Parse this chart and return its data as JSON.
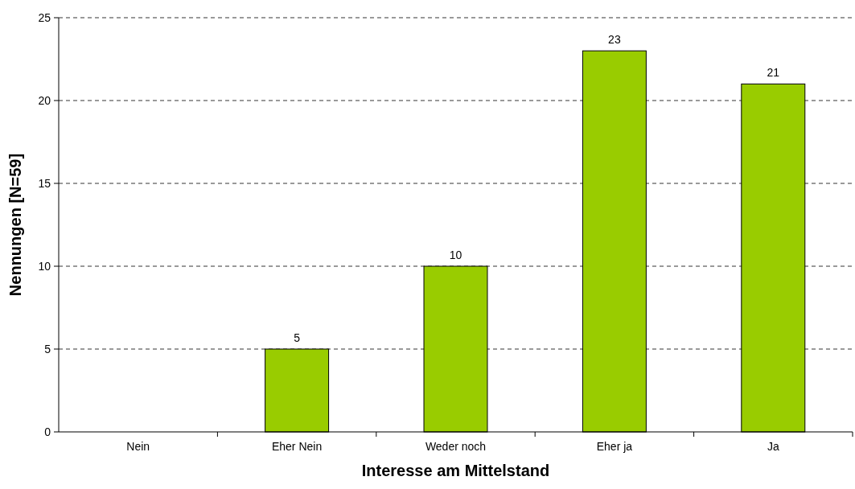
{
  "chart_data": {
    "type": "bar",
    "xlabel": "Interesse am Mittelstand",
    "ylabel": "Nennungen [N=59]",
    "categories": [
      "Nein",
      "Eher Nein",
      "Weder noch",
      "Eher ja",
      "Ja"
    ],
    "values": [
      0,
      5,
      10,
      23,
      21
    ],
    "value_labels": [
      null,
      "5",
      "10",
      "23",
      "21"
    ],
    "color": "#99cc00",
    "ylim": [
      0,
      25
    ],
    "yticks": [
      0,
      5,
      10,
      15,
      20,
      25
    ],
    "grid": "y"
  }
}
